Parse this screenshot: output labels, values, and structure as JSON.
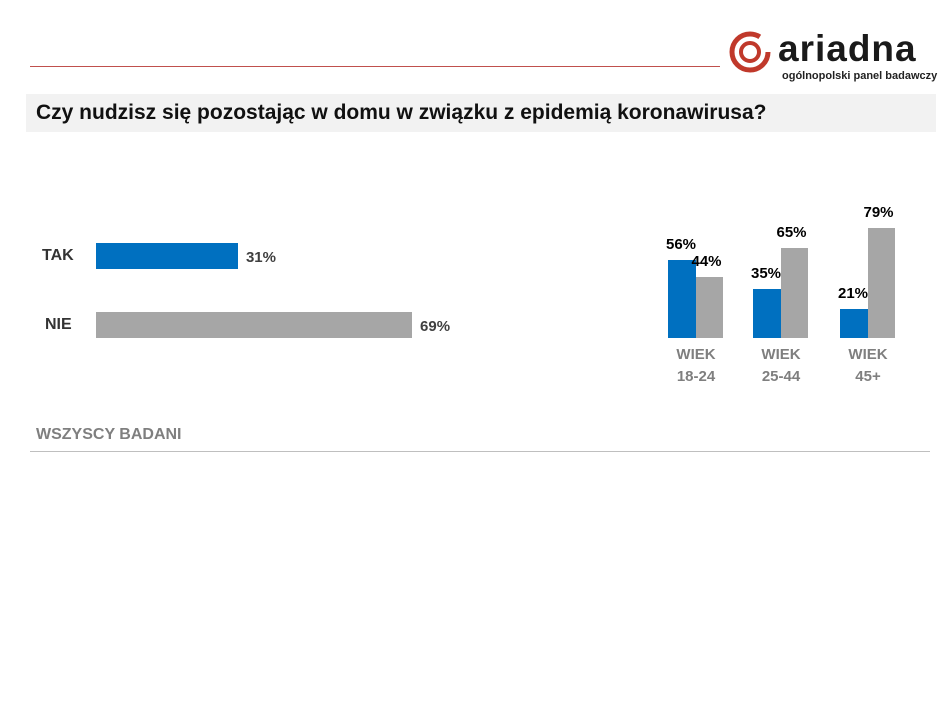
{
  "logo": {
    "word": "ariadna",
    "subtitle": "ogólnopolski panel badawczy",
    "color": "#c0392b"
  },
  "title": "Czy nudzisz się pozostając w domu w związku z epidemią koronawirusa?",
  "footer": "WSZYSCY BADANI",
  "chart_data": [
    {
      "type": "bar",
      "orientation": "horizontal",
      "categories": [
        "TAK",
        "NIE"
      ],
      "values": [
        31,
        69
      ],
      "data_labels": [
        "31%",
        "69%"
      ],
      "colors": [
        "#0070c0",
        "#a6a6a6"
      ]
    },
    {
      "type": "bar",
      "orientation": "vertical",
      "categories": [
        "WIEK 18-24",
        "WIEK 25-44",
        "WIEK 45+"
      ],
      "category_lines": [
        [
          "WIEK",
          "18-24"
        ],
        [
          "WIEK",
          "25-44"
        ],
        [
          "WIEK",
          "45+"
        ]
      ],
      "series": [
        {
          "values": [
            56,
            35,
            21
          ],
          "data_labels": [
            "56%",
            "35%",
            "21%"
          ],
          "color": "#0070c0"
        },
        {
          "values": [
            44,
            65,
            79
          ],
          "data_labels": [
            "44%",
            "65%",
            "79%"
          ],
          "color": "#a6a6a6"
        }
      ]
    }
  ]
}
